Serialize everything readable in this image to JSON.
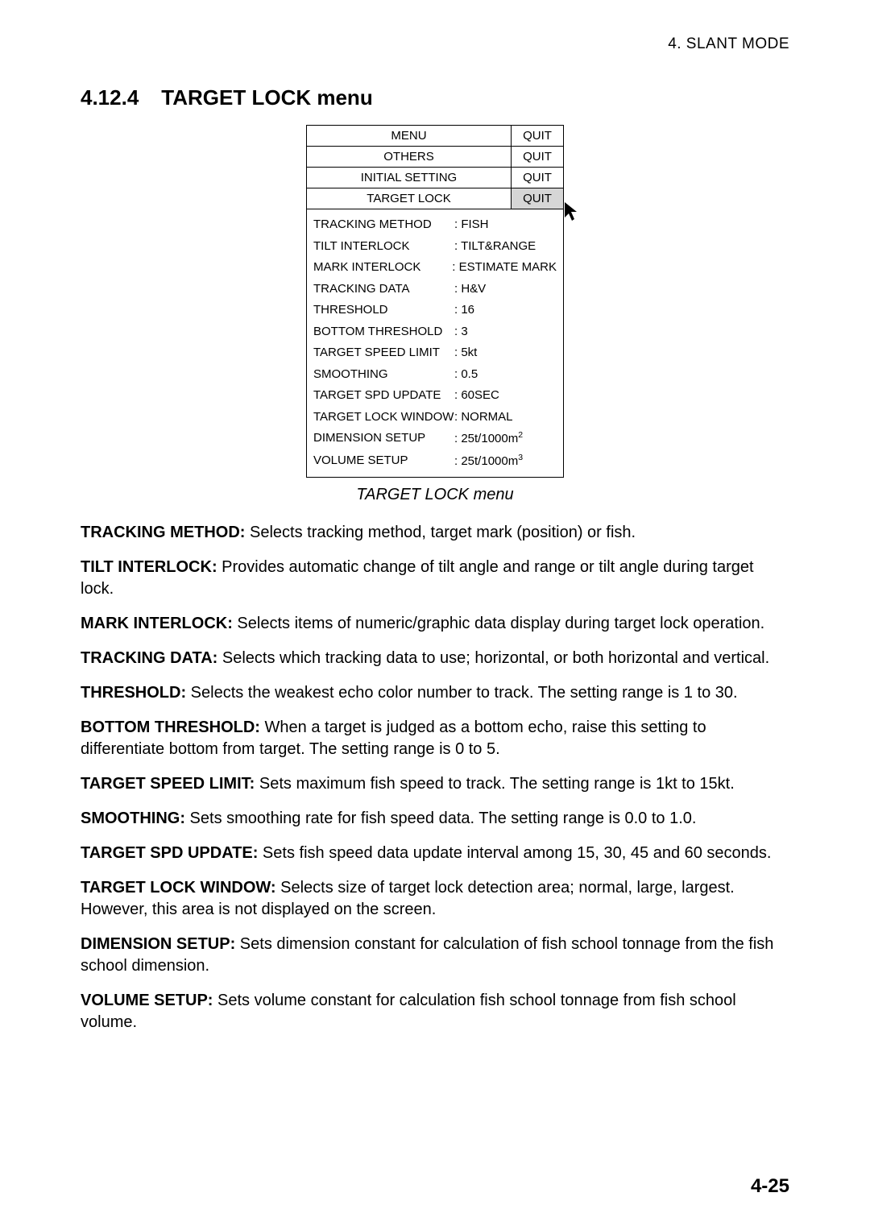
{
  "header": {
    "chapter": "4. SLANT MODE"
  },
  "section": {
    "number": "4.12.4",
    "title": "TARGET LOCK menu"
  },
  "menu": {
    "tabs": [
      {
        "label": "MENU",
        "quit": "QUIT",
        "active": false
      },
      {
        "label": "OTHERS",
        "quit": "QUIT",
        "active": false
      },
      {
        "label": "INITIAL SETTING",
        "quit": "QUIT",
        "active": false
      },
      {
        "label": "TARGET LOCK",
        "quit": "QUIT",
        "active": true
      }
    ],
    "rows": [
      {
        "label": "TRACKING METHOD",
        "value": ": FISH"
      },
      {
        "label": "TILT INTERLOCK",
        "value": ": TILT&RANGE"
      },
      {
        "label": "MARK INTERLOCK",
        "value": ": ESTIMATE MARK"
      },
      {
        "label": "TRACKING DATA",
        "value": ": H&V"
      },
      {
        "label": "THRESHOLD",
        "value": ": 16"
      },
      {
        "label": "BOTTOM THRESHOLD",
        "value": ": 3"
      },
      {
        "label": "TARGET SPEED LIMIT",
        "value": ": 5kt"
      },
      {
        "label": "SMOOTHING",
        "value": ": 0.5"
      },
      {
        "label": "TARGET SPD UPDATE",
        "value": ": 60SEC"
      },
      {
        "label": "TARGET LOCK WINDOW",
        "value": ": NORMAL"
      },
      {
        "label": "DIMENSION SETUP",
        "value": ": 25t/1000m",
        "sup": "2"
      },
      {
        "label": "VOLUME SETUP",
        "value": ": 25t/1000m",
        "sup": "3"
      }
    ],
    "caption": "TARGET LOCK menu"
  },
  "descriptions": [
    {
      "term": "TRACKING METHOD:",
      "text": " Selects tracking method, target mark (position) or fish."
    },
    {
      "term": "TILT INTERLOCK:",
      "text": " Provides automatic change of tilt angle and range or tilt angle during target lock."
    },
    {
      "term": "MARK INTERLOCK:",
      "text": " Selects items of numeric/graphic data display during target lock operation."
    },
    {
      "term": "TRACKING DATA:",
      "text": " Selects which tracking data to use; horizontal, or both horizontal and vertical."
    },
    {
      "term": "THRESHOLD:",
      "text": " Selects the weakest echo color number to track. The setting range is 1 to 30."
    },
    {
      "term": "BOTTOM THRESHOLD:",
      "text": " When a target is judged as a bottom echo, raise this setting to differentiate bottom from target. The setting range is 0 to 5."
    },
    {
      "term": "TARGET SPEED LIMIT:",
      "text": " Sets maximum fish speed to track. The setting range is 1kt to 15kt."
    },
    {
      "term": "SMOOTHING:",
      "text": " Sets smoothing rate for fish speed data. The setting range is 0.0 to 1.0."
    },
    {
      "term": "TARGET SPD UPDATE:",
      "text": " Sets fish speed data update interval among 15, 30, 45 and 60 seconds."
    },
    {
      "term": "TARGET LOCK WINDOW:",
      "text": " Selects size of target lock detection area; normal, large, largest. However, this area is not displayed on the screen."
    },
    {
      "term": "DIMENSION SETUP:",
      "text": " Sets dimension constant for calculation of fish school tonnage from the fish school dimension."
    },
    {
      "term": "VOLUME SETUP:",
      "text": " Sets volume constant for calculation fish school tonnage from fish school volume."
    }
  ],
  "pageNumber": "4-25"
}
